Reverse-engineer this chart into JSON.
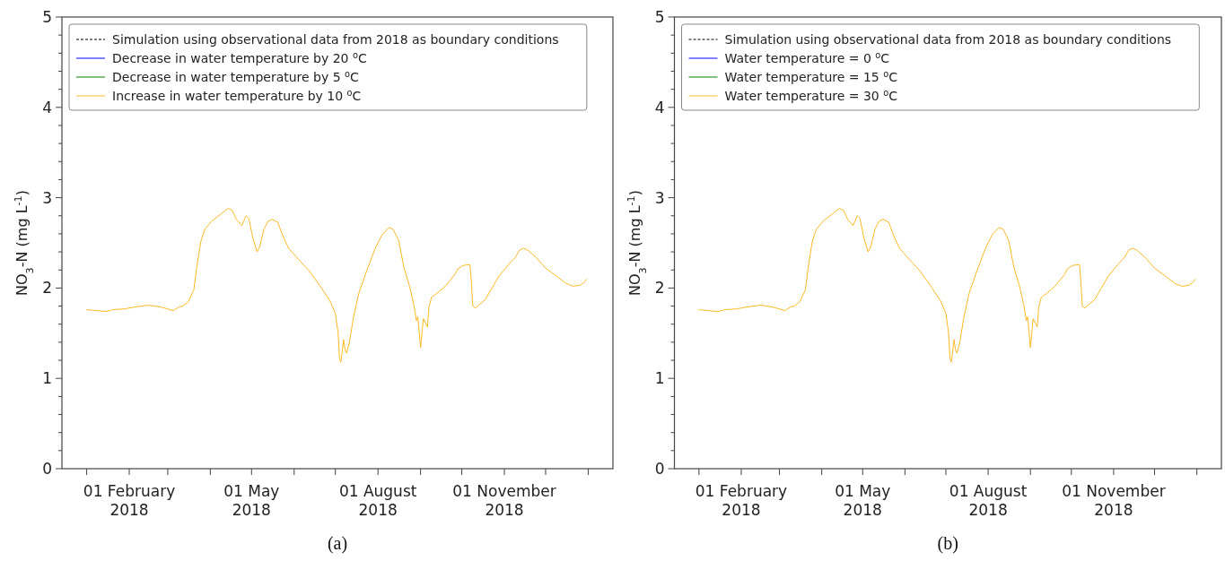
{
  "chart_data": [
    {
      "type": "line",
      "title": "(a)",
      "ylabel": "NO$_{3}$-N (mg L$^{-1}$)",
      "legend": "top left",
      "xlim": [
        "2017-12-14",
        "2019-01-19"
      ],
      "ylim": [
        0,
        5
      ],
      "xticks": [
        {
          "value": "2018-01-01",
          "label": null
        },
        {
          "value": "2018-02-01",
          "label": "01 February\n2018"
        },
        {
          "value": "2018-03-01",
          "label": null
        },
        {
          "value": "2018-04-01",
          "label": null
        },
        {
          "value": "2018-05-01",
          "label": "01 May\n2018"
        },
        {
          "value": "2018-06-01",
          "label": null
        },
        {
          "value": "2018-07-01",
          "label": null
        },
        {
          "value": "2018-08-01",
          "label": "01 August\n2018"
        },
        {
          "value": "2018-09-01",
          "label": null
        },
        {
          "value": "2018-10-01",
          "label": null
        },
        {
          "value": "2018-11-01",
          "label": "01 November\n2018"
        },
        {
          "value": "2018-12-01",
          "label": null
        },
        {
          "value": "2019-01-01",
          "label": null
        }
      ],
      "yticks": [
        0,
        {
          "value": 0.2,
          "label": null
        },
        {
          "value": 0.4,
          "label": null
        },
        {
          "value": 0.6,
          "label": null
        },
        {
          "value": 0.8,
          "label": null
        },
        1,
        {
          "value": 1.2,
          "label": null
        },
        {
          "value": 1.4,
          "label": null
        },
        {
          "value": 1.6,
          "label": null
        },
        {
          "value": 1.8,
          "label": null
        },
        2,
        {
          "value": 2.2,
          "label": null
        },
        {
          "value": 2.4,
          "label": null
        },
        {
          "value": 2.6,
          "label": null
        },
        {
          "value": 2.8,
          "label": null
        },
        3,
        {
          "value": 3.2,
          "label": null
        },
        {
          "value": 3.4,
          "label": null
        },
        {
          "value": 3.6,
          "label": null
        },
        {
          "value": 3.8,
          "label": null
        },
        4,
        {
          "value": 4.2,
          "label": null
        },
        {
          "value": 4.4,
          "label": null
        },
        {
          "value": 4.6,
          "label": null
        },
        {
          "value": 4.8,
          "label": null
        },
        5
      ],
      "x": [
        "2018-01-01",
        "2018-01-15",
        "2018-01-20",
        "2018-01-29",
        "2018-02-05",
        "2018-02-15",
        "2018-02-24",
        "2018-03-05",
        "2018-03-09",
        "2018-03-12",
        "2018-03-16",
        "2018-03-20",
        "2018-03-22",
        "2018-03-25",
        "2018-03-28",
        "2018-04-02",
        "2018-04-08",
        "2018-04-12",
        "2018-04-14",
        "2018-04-17",
        "2018-04-20",
        "2018-04-24",
        "2018-04-25",
        "2018-04-27",
        "2018-04-29",
        "2018-05-02",
        "2018-05-05",
        "2018-05-07",
        "2018-05-10",
        "2018-05-13",
        "2018-05-16",
        "2018-05-20",
        "2018-05-24",
        "2018-05-28",
        "2018-06-04",
        "2018-06-12",
        "2018-06-20",
        "2018-06-27",
        "2018-07-01",
        "2018-07-03",
        "2018-07-04",
        "2018-07-05",
        "2018-07-06",
        "2018-07-07",
        "2018-07-08",
        "2018-07-09",
        "2018-07-11",
        "2018-07-14",
        "2018-07-18",
        "2018-07-24",
        "2018-07-30",
        "2018-08-04",
        "2018-08-09",
        "2018-08-12",
        "2018-08-16",
        "2018-08-20",
        "2018-08-24",
        "2018-08-27",
        "2018-08-29",
        "2018-08-30",
        "2018-09-01",
        "2018-09-02",
        "2018-09-03",
        "2018-09-06",
        "2018-09-07",
        "2018-09-09",
        "2018-09-12",
        "2018-09-19",
        "2018-09-26",
        "2018-09-28",
        "2018-10-02",
        "2018-10-07",
        "2018-10-08",
        "2018-10-09",
        "2018-10-11",
        "2018-10-14",
        "2018-10-18",
        "2018-10-23",
        "2018-10-28",
        "2018-11-04",
        "2018-11-09",
        "2018-11-12",
        "2018-11-15",
        "2018-11-18",
        "2018-11-24",
        "2018-12-01",
        "2018-12-09",
        "2018-12-16",
        "2018-12-21",
        "2018-12-26",
        "2018-12-29",
        "2018-12-31"
      ],
      "series": [
        {
          "name": "Simulation using observational data from 2018 as boundary conditions",
          "color": "#000000",
          "line_style": "dashed",
          "values": [
            null,
            null,
            null,
            null,
            null,
            null,
            null,
            null,
            null,
            null,
            null,
            null,
            null,
            null,
            null,
            null,
            null,
            null,
            null,
            null,
            null,
            null,
            null,
            null,
            null,
            null,
            null,
            null,
            null,
            null,
            null,
            null,
            null,
            null,
            null,
            null,
            null,
            null,
            null,
            null,
            null,
            null,
            null,
            null,
            null,
            null,
            null,
            null,
            null,
            null,
            null,
            null,
            null,
            null,
            null,
            null,
            null,
            null,
            null,
            null,
            null,
            null,
            null,
            null,
            null,
            null,
            null,
            null,
            null,
            null,
            null,
            null,
            null,
            null,
            null,
            null,
            null,
            null,
            null,
            null,
            null,
            null,
            null,
            null,
            null,
            null,
            null,
            null,
            null,
            null,
            null,
            null
          ]
        },
        {
          "name": "Decrease in water temperature by 20 $^{o}$C",
          "color": "#0000ff",
          "line_style": "solid",
          "values": [
            null,
            null,
            null,
            null,
            null,
            null,
            null,
            null,
            null,
            null,
            null,
            null,
            null,
            null,
            null,
            null,
            null,
            null,
            null,
            null,
            null,
            null,
            null,
            null,
            null,
            null,
            null,
            null,
            null,
            null,
            null,
            null,
            null,
            null,
            null,
            null,
            null,
            null,
            null,
            null,
            null,
            null,
            null,
            null,
            null,
            null,
            null,
            null,
            null,
            null,
            null,
            null,
            null,
            null,
            null,
            null,
            null,
            null,
            null,
            null,
            null,
            null,
            null,
            null,
            null,
            null,
            null,
            null,
            null,
            null,
            null,
            null,
            null,
            null,
            null,
            null,
            null,
            null,
            null,
            null,
            null,
            null,
            null,
            null,
            null,
            null,
            null,
            null,
            null,
            null,
            null,
            null
          ]
        },
        {
          "name": "Decrease in water temperature by 5 $^{o}$C",
          "color": "#008000",
          "line_style": "solid",
          "values": [
            null,
            null,
            null,
            null,
            null,
            null,
            null,
            null,
            null,
            null,
            null,
            null,
            null,
            null,
            null,
            null,
            null,
            null,
            null,
            null,
            null,
            null,
            null,
            null,
            null,
            null,
            null,
            null,
            null,
            null,
            null,
            null,
            null,
            null,
            null,
            null,
            null,
            null,
            null,
            null,
            null,
            null,
            null,
            null,
            null,
            null,
            null,
            null,
            null,
            null,
            null,
            null,
            null,
            null,
            null,
            null,
            null,
            null,
            null,
            null,
            null,
            null,
            null,
            null,
            null,
            null,
            null,
            null,
            null,
            null,
            null,
            null,
            null,
            null,
            null,
            null,
            null,
            null,
            null,
            null,
            null,
            null,
            null,
            null,
            null,
            null,
            null,
            null,
            null,
            null,
            null,
            null
          ]
        },
        {
          "name": "Increase in water temperature by 10 $^{o}$C",
          "color": "#fdb924",
          "line_style": "solid",
          "values": [
            1.76,
            1.74,
            1.76,
            1.77,
            1.79,
            1.81,
            1.79,
            1.75,
            1.79,
            1.8,
            1.85,
            1.98,
            2.22,
            2.51,
            2.65,
            2.74,
            2.81,
            2.86,
            2.88,
            2.86,
            2.76,
            2.69,
            2.73,
            2.8,
            2.77,
            2.55,
            2.4,
            2.46,
            2.65,
            2.74,
            2.76,
            2.73,
            2.57,
            2.44,
            2.32,
            2.19,
            2.02,
            1.86,
            1.72,
            1.5,
            1.22,
            1.18,
            1.3,
            1.43,
            1.32,
            1.28,
            1.38,
            1.66,
            1.94,
            2.2,
            2.44,
            2.59,
            2.67,
            2.65,
            2.53,
            2.22,
            2.02,
            1.82,
            1.64,
            1.68,
            1.34,
            1.5,
            1.66,
            1.57,
            1.78,
            1.9,
            1.93,
            2.02,
            2.15,
            2.21,
            2.25,
            2.26,
            2.06,
            1.8,
            1.78,
            1.82,
            1.87,
            2.0,
            2.13,
            2.26,
            2.34,
            2.42,
            2.44,
            2.42,
            2.34,
            2.22,
            2.13,
            2.05,
            2.02,
            2.03,
            2.06,
            2.1
          ]
        }
      ]
    },
    {
      "type": "line",
      "title": "(b)",
      "ylabel": "NO$_{3}$-N (mg L$^{-1}$)",
      "legend": "top left",
      "xlim": [
        "2017-12-14",
        "2019-01-19"
      ],
      "ylim": [
        0,
        5
      ],
      "xticks": [
        {
          "value": "2018-01-01",
          "label": null
        },
        {
          "value": "2018-02-01",
          "label": "01 February\n2018"
        },
        {
          "value": "2018-03-01",
          "label": null
        },
        {
          "value": "2018-04-01",
          "label": null
        },
        {
          "value": "2018-05-01",
          "label": "01 May\n2018"
        },
        {
          "value": "2018-06-01",
          "label": null
        },
        {
          "value": "2018-07-01",
          "label": null
        },
        {
          "value": "2018-08-01",
          "label": "01 August\n2018"
        },
        {
          "value": "2018-09-01",
          "label": null
        },
        {
          "value": "2018-10-01",
          "label": null
        },
        {
          "value": "2018-11-01",
          "label": "01 November\n2018"
        },
        {
          "value": "2018-12-01",
          "label": null
        },
        {
          "value": "2019-01-01",
          "label": null
        }
      ],
      "yticks": [
        0,
        {
          "value": 0.2,
          "label": null
        },
        {
          "value": 0.4,
          "label": null
        },
        {
          "value": 0.6,
          "label": null
        },
        {
          "value": 0.8,
          "label": null
        },
        1,
        {
          "value": 1.2,
          "label": null
        },
        {
          "value": 1.4,
          "label": null
        },
        {
          "value": 1.6,
          "label": null
        },
        {
          "value": 1.8,
          "label": null
        },
        2,
        {
          "value": 2.2,
          "label": null
        },
        {
          "value": 2.4,
          "label": null
        },
        {
          "value": 2.6,
          "label": null
        },
        {
          "value": 2.8,
          "label": null
        },
        3,
        {
          "value": 3.2,
          "label": null
        },
        {
          "value": 3.4,
          "label": null
        },
        {
          "value": 3.6,
          "label": null
        },
        {
          "value": 3.8,
          "label": null
        },
        4,
        {
          "value": 4.2,
          "label": null
        },
        {
          "value": 4.4,
          "label": null
        },
        {
          "value": 4.6,
          "label": null
        },
        {
          "value": 4.8,
          "label": null
        },
        5
      ],
      "x": [
        "2018-01-01",
        "2018-01-15",
        "2018-01-20",
        "2018-01-29",
        "2018-02-05",
        "2018-02-15",
        "2018-02-24",
        "2018-03-05",
        "2018-03-09",
        "2018-03-12",
        "2018-03-16",
        "2018-03-20",
        "2018-03-22",
        "2018-03-25",
        "2018-03-28",
        "2018-04-02",
        "2018-04-08",
        "2018-04-12",
        "2018-04-14",
        "2018-04-17",
        "2018-04-20",
        "2018-04-24",
        "2018-04-25",
        "2018-04-27",
        "2018-04-29",
        "2018-05-02",
        "2018-05-05",
        "2018-05-07",
        "2018-05-10",
        "2018-05-13",
        "2018-05-16",
        "2018-05-20",
        "2018-05-24",
        "2018-05-28",
        "2018-06-04",
        "2018-06-12",
        "2018-06-20",
        "2018-06-27",
        "2018-07-01",
        "2018-07-03",
        "2018-07-04",
        "2018-07-05",
        "2018-07-06",
        "2018-07-07",
        "2018-07-08",
        "2018-07-09",
        "2018-07-11",
        "2018-07-14",
        "2018-07-18",
        "2018-07-24",
        "2018-07-30",
        "2018-08-04",
        "2018-08-09",
        "2018-08-12",
        "2018-08-16",
        "2018-08-20",
        "2018-08-24",
        "2018-08-27",
        "2018-08-29",
        "2018-08-30",
        "2018-09-01",
        "2018-09-02",
        "2018-09-03",
        "2018-09-06",
        "2018-09-07",
        "2018-09-09",
        "2018-09-12",
        "2018-09-19",
        "2018-09-26",
        "2018-09-28",
        "2018-10-02",
        "2018-10-07",
        "2018-10-08",
        "2018-10-09",
        "2018-10-11",
        "2018-10-14",
        "2018-10-18",
        "2018-10-23",
        "2018-10-28",
        "2018-11-04",
        "2018-11-09",
        "2018-11-12",
        "2018-11-15",
        "2018-11-18",
        "2018-11-24",
        "2018-12-01",
        "2018-12-09",
        "2018-12-16",
        "2018-12-21",
        "2018-12-26",
        "2018-12-29",
        "2018-12-31"
      ],
      "series": [
        {
          "name": "Simulation using observational data from 2018 as boundary conditions",
          "color": "#000000",
          "line_style": "dashed",
          "values": [
            null,
            null,
            null,
            null,
            null,
            null,
            null,
            null,
            null,
            null,
            null,
            null,
            null,
            null,
            null,
            null,
            null,
            null,
            null,
            null,
            null,
            null,
            null,
            null,
            null,
            null,
            null,
            null,
            null,
            null,
            null,
            null,
            null,
            null,
            null,
            null,
            null,
            null,
            null,
            null,
            null,
            null,
            null,
            null,
            null,
            null,
            null,
            null,
            null,
            null,
            null,
            null,
            null,
            null,
            null,
            null,
            null,
            null,
            null,
            null,
            null,
            null,
            null,
            null,
            null,
            null,
            null,
            null,
            null,
            null,
            null,
            null,
            null,
            null,
            null,
            null,
            null,
            null,
            null,
            null,
            null,
            null,
            null,
            null,
            null,
            null,
            null,
            null,
            null,
            null,
            null,
            null
          ]
        },
        {
          "name": "Water temperature = 0 $^{o}$C",
          "color": "#0000ff",
          "line_style": "solid",
          "values": [
            null,
            null,
            null,
            null,
            null,
            null,
            null,
            null,
            null,
            null,
            null,
            null,
            null,
            null,
            null,
            null,
            null,
            null,
            null,
            null,
            null,
            null,
            null,
            null,
            null,
            null,
            null,
            null,
            null,
            null,
            null,
            null,
            null,
            null,
            null,
            null,
            null,
            null,
            null,
            null,
            null,
            null,
            null,
            null,
            null,
            null,
            null,
            null,
            null,
            null,
            null,
            null,
            null,
            null,
            null,
            null,
            null,
            null,
            null,
            null,
            null,
            null,
            null,
            null,
            null,
            null,
            null,
            null,
            null,
            null,
            null,
            null,
            null,
            null,
            null,
            null,
            null,
            null,
            null,
            null,
            null,
            null,
            null,
            null,
            null,
            null,
            null,
            null,
            null,
            null,
            null,
            null
          ]
        },
        {
          "name": "Water temperature = 15 $^{o}$C",
          "color": "#008000",
          "line_style": "solid",
          "values": [
            null,
            null,
            null,
            null,
            null,
            null,
            null,
            null,
            null,
            null,
            null,
            null,
            null,
            null,
            null,
            null,
            null,
            null,
            null,
            null,
            null,
            null,
            null,
            null,
            null,
            null,
            null,
            null,
            null,
            null,
            null,
            null,
            null,
            null,
            null,
            null,
            null,
            null,
            null,
            null,
            null,
            null,
            null,
            null,
            null,
            null,
            null,
            null,
            null,
            null,
            null,
            null,
            null,
            null,
            null,
            null,
            null,
            null,
            null,
            null,
            null,
            null,
            null,
            null,
            null,
            null,
            null,
            null,
            null,
            null,
            null,
            null,
            null,
            null,
            null,
            null,
            null,
            null,
            null,
            null,
            null,
            null,
            null,
            null,
            null,
            null,
            null,
            null,
            null,
            null,
            null,
            null
          ]
        },
        {
          "name": "Water temperature = 30 $^{o}$C",
          "color": "#fdb924",
          "line_style": "solid",
          "values": [
            1.76,
            1.74,
            1.76,
            1.77,
            1.79,
            1.81,
            1.79,
            1.75,
            1.79,
            1.8,
            1.85,
            1.98,
            2.22,
            2.51,
            2.65,
            2.74,
            2.81,
            2.86,
            2.88,
            2.86,
            2.76,
            2.69,
            2.73,
            2.8,
            2.77,
            2.55,
            2.4,
            2.46,
            2.65,
            2.74,
            2.76,
            2.73,
            2.57,
            2.44,
            2.32,
            2.19,
            2.02,
            1.86,
            1.72,
            1.5,
            1.22,
            1.18,
            1.3,
            1.43,
            1.32,
            1.28,
            1.38,
            1.66,
            1.94,
            2.2,
            2.44,
            2.59,
            2.67,
            2.65,
            2.53,
            2.22,
            2.02,
            1.82,
            1.64,
            1.68,
            1.34,
            1.5,
            1.66,
            1.57,
            1.78,
            1.9,
            1.93,
            2.02,
            2.15,
            2.21,
            2.25,
            2.26,
            2.06,
            1.8,
            1.78,
            1.82,
            1.87,
            2.0,
            2.13,
            2.26,
            2.34,
            2.42,
            2.44,
            2.42,
            2.34,
            2.22,
            2.13,
            2.05,
            2.02,
            2.03,
            2.06,
            2.1
          ]
        }
      ]
    }
  ]
}
